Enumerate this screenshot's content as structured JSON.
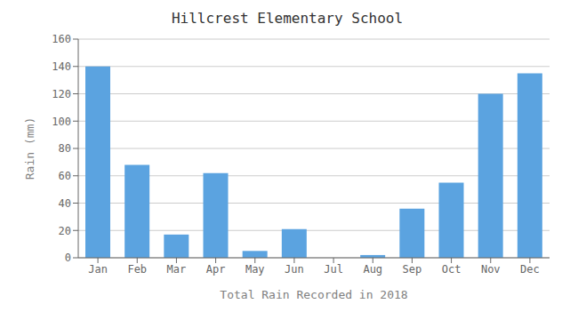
{
  "chart_data": {
    "type": "bar",
    "title": "Hillcrest Elementary School",
    "xlabel": "Total Rain Recorded in 2018",
    "ylabel": "Rain (mm)",
    "categories": [
      "Jan",
      "Feb",
      "Mar",
      "Apr",
      "May",
      "Jun",
      "Jul",
      "Aug",
      "Sep",
      "Oct",
      "Nov",
      "Dec"
    ],
    "values": [
      140,
      68,
      17,
      62,
      5,
      21,
      0,
      2,
      36,
      55,
      120,
      135
    ],
    "color": "#5BA3E0",
    "ylim": [
      0,
      160
    ],
    "yticks": [
      0,
      20,
      40,
      60,
      80,
      100,
      120,
      140,
      160
    ],
    "grid": true
  }
}
